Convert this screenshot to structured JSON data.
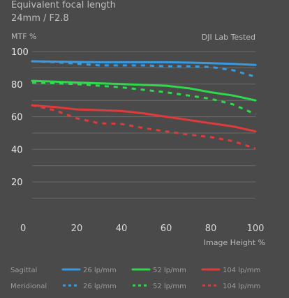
{
  "header": {
    "title": "Equivalent focal length",
    "subtitle": "24mm / F2.8"
  },
  "chart_data": {
    "type": "line",
    "ylabel": "MTF %",
    "xlabel": "Image Height %",
    "annotation": "DJI Lab Tested",
    "xlim": [
      0,
      100
    ],
    "ylim": [
      0,
      100
    ],
    "x_ticks": [
      "0",
      "20",
      "40",
      "60",
      "80",
      "100"
    ],
    "y_ticks": [
      "20",
      "40",
      "60",
      "80",
      "100"
    ],
    "grid": true,
    "legend_rows": {
      "sagittal": "Sagittal",
      "meridional": "Meridional"
    },
    "series": [
      {
        "key": "s26",
        "name": "26 lp/mm",
        "group": "Sagittal",
        "color": "#3a9ae0",
        "dashed": false,
        "x": [
          0,
          10,
          20,
          30,
          40,
          50,
          60,
          70,
          80,
          90,
          100
        ],
        "y": [
          94,
          93.8,
          93.6,
          93.4,
          93.4,
          93.4,
          93.4,
          93.2,
          92.8,
          92.4,
          91.8
        ]
      },
      {
        "key": "s52",
        "name": "52 lp/mm",
        "group": "Sagittal",
        "color": "#2ed94a",
        "dashed": false,
        "x": [
          0,
          10,
          20,
          30,
          40,
          50,
          60,
          70,
          80,
          90,
          100
        ],
        "y": [
          82,
          81.5,
          81,
          80.5,
          80,
          79.5,
          79,
          77.5,
          75,
          73,
          70
        ]
      },
      {
        "key": "s104",
        "name": "104 lp/mm",
        "group": "Sagittal",
        "color": "#e03a3a",
        "dashed": false,
        "x": [
          0,
          10,
          20,
          30,
          40,
          50,
          60,
          70,
          80,
          90,
          100
        ],
        "y": [
          67,
          66,
          64.5,
          64,
          63.5,
          62,
          60,
          58,
          56,
          54,
          51
        ]
      },
      {
        "key": "m26",
        "name": "26 lp/mm",
        "group": "Meridional",
        "color": "#3a9ae0",
        "dashed": true,
        "x": [
          0,
          10,
          20,
          30,
          40,
          50,
          60,
          70,
          80,
          90,
          100
        ],
        "y": [
          94,
          93.5,
          92.5,
          91.5,
          91.5,
          91.5,
          91,
          91,
          90.5,
          88.5,
          84.5
        ]
      },
      {
        "key": "m52",
        "name": "52 lp/mm",
        "group": "Meridional",
        "color": "#2ed94a",
        "dashed": true,
        "x": [
          0,
          10,
          20,
          30,
          40,
          50,
          60,
          70,
          80,
          90,
          100
        ],
        "y": [
          81,
          80.5,
          80,
          79,
          78,
          76.5,
          75,
          73,
          71,
          67.5,
          61.5
        ]
      },
      {
        "key": "m104",
        "name": "104 lp/mm",
        "group": "Meridional",
        "color": "#e03a3a",
        "dashed": true,
        "x": [
          0,
          10,
          20,
          30,
          40,
          50,
          60,
          70,
          80,
          90,
          100
        ],
        "y": [
          67,
          64,
          59,
          56,
          55.5,
          53,
          51,
          49,
          47.5,
          45,
          40.5
        ]
      }
    ]
  }
}
